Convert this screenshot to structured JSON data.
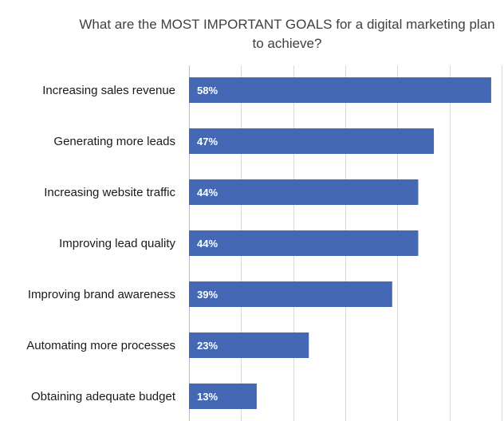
{
  "chart_data": {
    "type": "bar",
    "orientation": "horizontal",
    "title_lines": [
      "What are the MOST IMPORTANT GOALS for a digital marketing plan",
      "to achieve?"
    ],
    "categories": [
      "Increasing sales revenue",
      "Generating more leads",
      "Increasing website traffic",
      "Improving lead quality",
      "Improving brand awareness",
      "Automating more processes",
      "Obtaining adequate budget"
    ],
    "values": [
      58,
      47,
      44,
      44,
      39,
      23,
      13
    ],
    "labels": [
      "58%",
      "47%",
      "44%",
      "44%",
      "39%",
      "23%",
      "13%"
    ],
    "xlim": [
      0,
      60
    ],
    "grid": true,
    "bar_color": "#4468B4",
    "grid_color": "#d9d9d9"
  }
}
